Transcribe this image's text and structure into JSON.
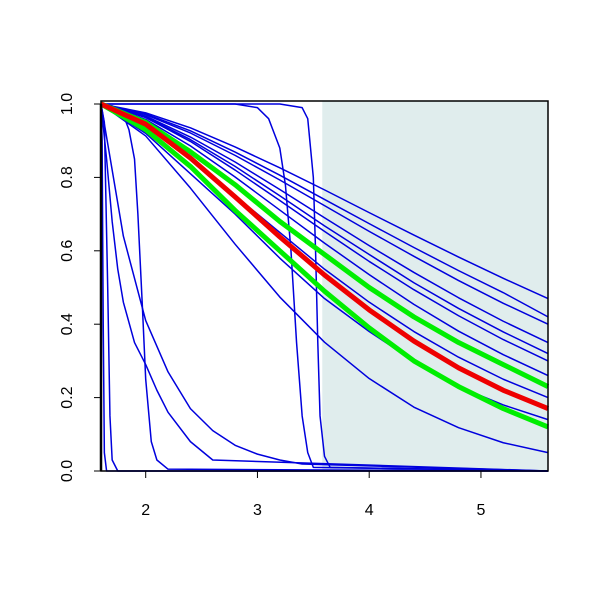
{
  "chart_data": {
    "type": "line",
    "xlim": [
      1.6,
      5.6
    ],
    "ylim": [
      0,
      1
    ],
    "xticks": [
      2,
      3,
      4,
      5
    ],
    "yticks": [
      {
        "value": 0,
        "label": "0.0"
      },
      0.2,
      0.4,
      0.6,
      0.8,
      {
        "value": 1,
        "label": "1.0"
      }
    ],
    "shaded_region": {
      "xlim": [
        3.58,
        5.6
      ],
      "color": "#e0eded"
    },
    "series": [
      {
        "color": "#0000dd",
        "linewidth": 1.5,
        "x": [
          1.6,
          2.0,
          2.4,
          2.8,
          3.2,
          3.6,
          4.0,
          4.4,
          4.8,
          5.2,
          5.6
        ],
        "values": [
          1,
          0.976,
          0.935,
          0.883,
          0.826,
          0.766,
          0.704,
          0.643,
          0.583,
          0.525,
          0.47
        ]
      },
      {
        "color": "#0000dd",
        "linewidth": 1.5,
        "x": [
          1.6,
          2.0,
          2.4,
          2.8,
          3.2,
          3.6,
          4.0,
          4.4,
          4.8,
          5.2,
          5.6
        ],
        "values": [
          1,
          0.973,
          0.927,
          0.869,
          0.806,
          0.74,
          0.674,
          0.609,
          0.546,
          0.486,
          0.42
        ]
      },
      {
        "color": "#0000dd",
        "linewidth": 1.5,
        "x": [
          1.6,
          2.0,
          2.4,
          2.8,
          3.2,
          3.6,
          4.0,
          4.4,
          4.8,
          5.2,
          5.6
        ],
        "values": [
          1,
          0.971,
          0.921,
          0.86,
          0.793,
          0.723,
          0.653,
          0.585,
          0.519,
          0.457,
          0.4
        ]
      },
      {
        "color": "#0000dd",
        "linewidth": 1.5,
        "x": [
          1.6,
          2.0,
          2.4,
          2.8,
          3.2,
          3.6,
          4.0,
          4.4,
          4.8,
          5.2,
          5.6
        ],
        "values": [
          1,
          0.967,
          0.91,
          0.842,
          0.767,
          0.69,
          0.614,
          0.541,
          0.472,
          0.408,
          0.35
        ]
      },
      {
        "color": "#0000dd",
        "linewidth": 1.5,
        "x": [
          1.6,
          2.0,
          2.4,
          2.8,
          3.2,
          3.6,
          4.0,
          4.4,
          4.8,
          5.2,
          5.6
        ],
        "values": [
          1,
          0.965,
          0.903,
          0.83,
          0.75,
          0.668,
          0.59,
          0.513,
          0.443,
          0.379,
          0.32
        ]
      },
      {
        "color": "#0000dd",
        "linewidth": 1.5,
        "x": [
          1.6,
          2.0,
          2.4,
          2.8,
          3.2,
          3.6,
          4.0,
          4.4,
          4.8,
          5.2,
          5.6
        ],
        "values": [
          1,
          0.963,
          0.898,
          0.82,
          0.737,
          0.653,
          0.571,
          0.494,
          0.423,
          0.358,
          0.3
        ]
      },
      {
        "color": "#0000dd",
        "linewidth": 1.5,
        "x": [
          1.6,
          2.0,
          2.4,
          2.8,
          3.2,
          3.6,
          4.0,
          4.4,
          4.8,
          5.2,
          5.6
        ],
        "values": [
          1,
          0.958,
          0.886,
          0.801,
          0.711,
          0.621,
          0.535,
          0.454,
          0.381,
          0.317,
          0.26
        ]
      },
      {
        "color": "#0000dd",
        "linewidth": 1.5,
        "x": [
          1.6,
          2.0,
          2.4,
          2.8,
          3.2,
          3.6,
          4.0,
          4.4,
          4.8,
          5.2,
          5.6
        ],
        "values": [
          1,
          0.94,
          0.85,
          0.75,
          0.65,
          0.55,
          0.46,
          0.38,
          0.31,
          0.25,
          0.2
        ]
      },
      {
        "color": "#0000dd",
        "linewidth": 1.5,
        "x": [
          1.6,
          2.0,
          2.4,
          2.8,
          3.2,
          3.6,
          4.0,
          4.4,
          4.8,
          5.2,
          5.6
        ],
        "values": [
          1,
          0.92,
          0.81,
          0.7,
          0.58,
          0.47,
          0.38,
          0.3,
          0.23,
          0.18,
          0.14
        ]
      },
      {
        "color": "#0000dd",
        "linewidth": 1.5,
        "x": [
          1.6,
          2.0,
          2.4,
          2.8,
          3.2,
          3.6,
          4.0,
          4.4,
          4.8,
          5.2,
          5.6
        ],
        "values": [
          1,
          0.913,
          0.771,
          0.618,
          0.474,
          0.351,
          0.252,
          0.174,
          0.118,
          0.077,
          0.05
        ]
      },
      {
        "color": "#0000dd",
        "linewidth": 1.5,
        "x": [
          1.6,
          1.61,
          1.62,
          1.63,
          1.65,
          5.6
        ],
        "values": [
          1,
          0.9,
          0.4,
          0.05,
          0,
          0
        ]
      },
      {
        "color": "#0000dd",
        "linewidth": 1.5,
        "x": [
          1.6,
          1.63,
          1.66,
          1.68,
          1.7,
          1.75,
          5.6
        ],
        "values": [
          1,
          0.95,
          0.5,
          0.15,
          0.03,
          0,
          0
        ]
      },
      {
        "color": "#0000dd",
        "linewidth": 1.5,
        "x": [
          1.6,
          1.65,
          1.7,
          1.75,
          1.8,
          1.9,
          2.0,
          2.1,
          2.2,
          2.4,
          2.6,
          5.6
        ],
        "values": [
          1,
          0.85,
          0.68,
          0.55,
          0.46,
          0.35,
          0.29,
          0.22,
          0.16,
          0.08,
          0.03,
          0
        ]
      },
      {
        "color": "#0000dd",
        "linewidth": 1.5,
        "x": [
          1.6,
          1.8,
          2.0,
          2.2,
          2.4,
          2.6,
          2.8,
          3.0,
          3.2,
          3.4,
          5.6
        ],
        "values": [
          1,
          0.64,
          0.41,
          0.27,
          0.17,
          0.11,
          0.07,
          0.046,
          0.03,
          0.019,
          0
        ]
      },
      {
        "color": "#0000dd",
        "linewidth": 1.5,
        "x": [
          1.6,
          1.7,
          1.8,
          1.85,
          1.9,
          1.93,
          1.97,
          2.0,
          2.05,
          2.1,
          2.2,
          5.6
        ],
        "values": [
          1,
          0.995,
          0.97,
          0.93,
          0.85,
          0.7,
          0.45,
          0.25,
          0.08,
          0.03,
          0.005,
          0
        ]
      },
      {
        "color": "#0000dd",
        "linewidth": 1.5,
        "x": [
          1.6,
          2.8,
          3.0,
          3.1,
          3.2,
          3.25,
          3.3,
          3.35,
          3.4,
          3.45,
          3.5,
          5.6
        ],
        "values": [
          1,
          1,
          0.99,
          0.96,
          0.88,
          0.78,
          0.6,
          0.35,
          0.15,
          0.05,
          0.01,
          0
        ]
      },
      {
        "color": "#0000dd",
        "linewidth": 1.5,
        "x": [
          1.6,
          3.2,
          3.4,
          3.45,
          3.5,
          3.52,
          3.54,
          3.56,
          3.6,
          3.65,
          5.6
        ],
        "values": [
          1,
          1,
          0.99,
          0.96,
          0.8,
          0.6,
          0.35,
          0.15,
          0.04,
          0.01,
          0
        ]
      },
      {
        "color": "#00ee00",
        "linewidth": 5,
        "x": [
          1.6,
          2.0,
          2.4,
          2.8,
          3.2,
          3.6,
          4.0,
          4.4,
          4.8,
          5.2,
          5.6
        ],
        "values": [
          1,
          0.95,
          0.87,
          0.78,
          0.68,
          0.59,
          0.5,
          0.42,
          0.35,
          0.29,
          0.23
        ]
      },
      {
        "color": "#00ee00",
        "linewidth": 5,
        "x": [
          1.6,
          2.0,
          2.4,
          2.8,
          3.2,
          3.6,
          4.0,
          4.4,
          4.8,
          5.2,
          5.6
        ],
        "values": [
          1,
          0.93,
          0.83,
          0.71,
          0.6,
          0.49,
          0.39,
          0.3,
          0.23,
          0.17,
          0.12
        ]
      },
      {
        "color": "#ee0000",
        "linewidth": 5,
        "x": [
          1.6,
          2.0,
          2.4,
          2.8,
          3.2,
          3.6,
          4.0,
          4.4,
          4.8,
          5.2,
          5.6
        ],
        "values": [
          1,
          0.945,
          0.853,
          0.747,
          0.638,
          0.534,
          0.439,
          0.354,
          0.281,
          0.22,
          0.17
        ]
      }
    ]
  }
}
